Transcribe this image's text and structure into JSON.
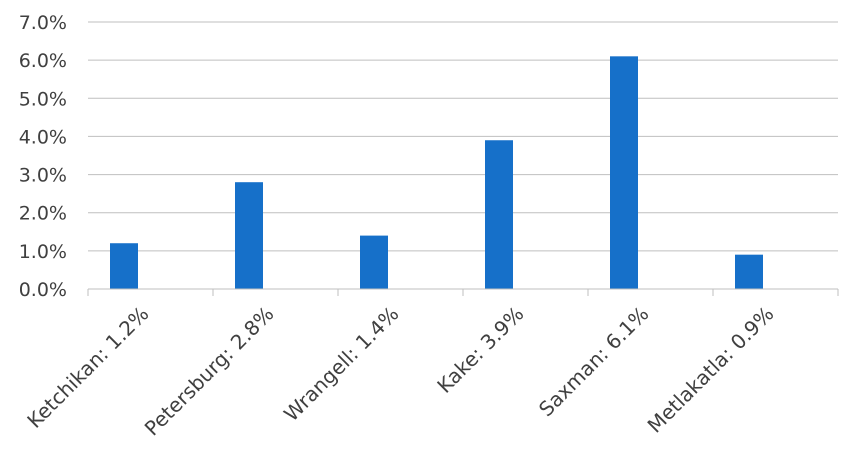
{
  "chart_data": {
    "type": "bar",
    "categories": [
      "Ketchikan: 1.2%",
      "Petersburg: 2.8%",
      "Wrangell: 1.4%",
      "Kake: 3.9%",
      "Saxman: 6.1%",
      "Metlakatla: 0.9%"
    ],
    "values": [
      1.2,
      2.8,
      1.4,
      3.9,
      6.1,
      0.9
    ],
    "y_ticks": [
      "0.0%",
      "1.0%",
      "2.0%",
      "3.0%",
      "4.0%",
      "5.0%",
      "6.0%",
      "7.0%"
    ],
    "ylim": [
      0,
      7
    ],
    "grid": true,
    "legend": "none",
    "bar_color": "#1670C9"
  }
}
